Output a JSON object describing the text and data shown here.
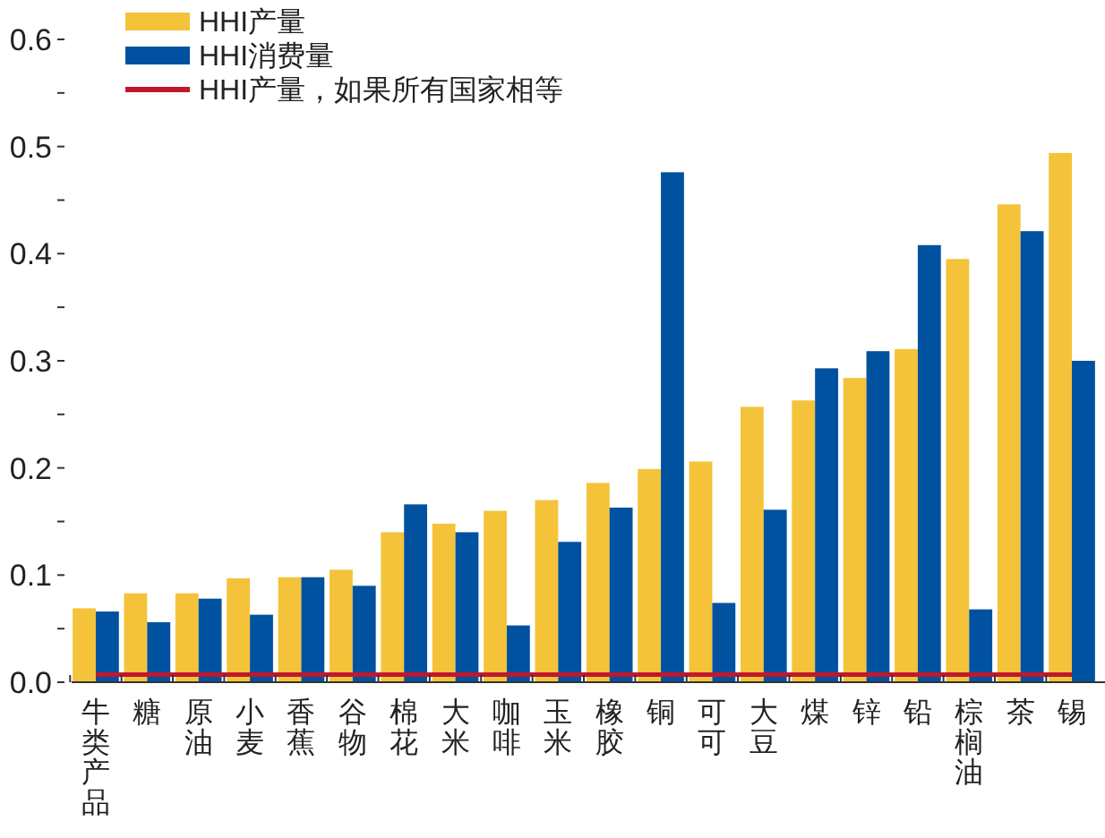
{
  "chart_data": {
    "type": "bar",
    "categories": [
      "牛类产品",
      "糖",
      "原油",
      "小麦",
      "香蕉",
      "谷物",
      "棉花",
      "大米",
      "咖啡",
      "玉米",
      "橡胶",
      "铜",
      "可可",
      "大豆",
      "煤",
      "锌",
      "铅",
      "棕榈油",
      "茶",
      "锡"
    ],
    "series": [
      {
        "name": "HHI产量",
        "color": "#f4c33a",
        "values": [
          0.069,
          0.083,
          0.083,
          0.097,
          0.098,
          0.105,
          0.14,
          0.148,
          0.16,
          0.17,
          0.186,
          0.199,
          0.206,
          0.257,
          0.263,
          0.284,
          0.311,
          0.395,
          0.446,
          0.494
        ]
      },
      {
        "name": "HHI消费量",
        "color": "#0052a0",
        "values": [
          0.066,
          0.056,
          0.078,
          0.063,
          0.098,
          0.09,
          0.166,
          0.14,
          0.053,
          0.131,
          0.163,
          0.476,
          0.074,
          0.161,
          0.293,
          0.309,
          0.408,
          0.068,
          0.421,
          0.3
        ]
      },
      {
        "name": "HHI产量，如果所有国家相等",
        "type": "line",
        "color": "#c0182e",
        "values": [
          0.007,
          0.007,
          0.007,
          0.007,
          0.007,
          0.007,
          0.007,
          0.007,
          0.007,
          0.007,
          0.007,
          0.007,
          0.007,
          0.007,
          0.007,
          0.007,
          0.007,
          0.007,
          0.007,
          0.007
        ]
      }
    ],
    "ylim": [
      0,
      0.6
    ],
    "yticks": [
      {
        "value": 0,
        "label": "0.0"
      },
      {
        "value": 0.05,
        "label": null
      },
      0.1,
      {
        "value": 0.15,
        "label": null
      },
      0.2,
      {
        "value": 0.25,
        "label": null
      },
      0.3,
      {
        "value": 0.35,
        "label": null
      },
      0.4,
      {
        "value": 0.45,
        "label": null
      },
      0.5,
      {
        "value": 0.55,
        "label": null
      },
      0.6
    ],
    "legend": "top left",
    "grid": false
  }
}
